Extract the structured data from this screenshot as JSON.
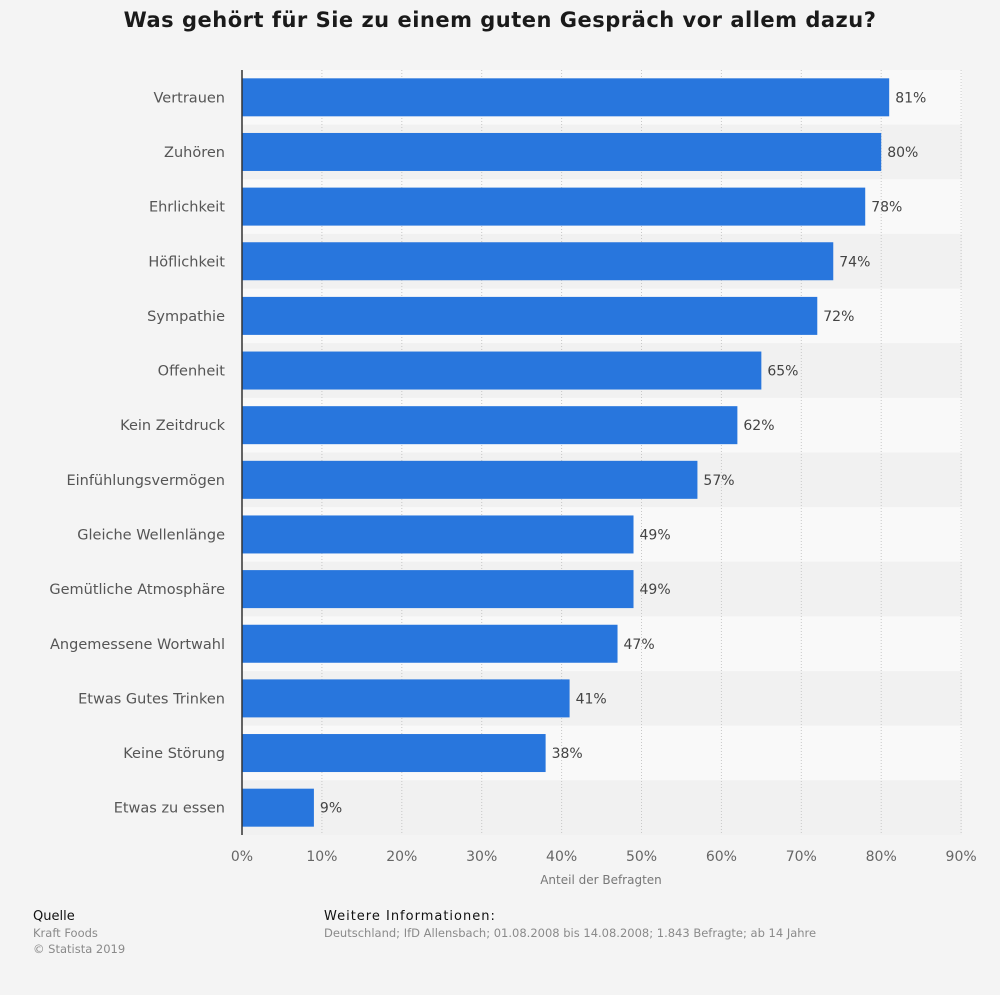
{
  "chart_data": {
    "type": "bar",
    "orientation": "horizontal",
    "title": "Was gehört für Sie zu einem guten Gespräch vor allem dazu?",
    "xlabel": "Anteil der Befragten",
    "categories": [
      "Vertrauen",
      "Zuhören",
      "Ehrlichkeit",
      "Höflichkeit",
      "Sympathie",
      "Offenheit",
      "Kein Zeitdruck",
      "Einfühlungsvermögen",
      "Gleiche Wellenlänge",
      "Gemütliche Atmosphäre",
      "Angemessene Wortwahl",
      "Etwas Gutes Trinken",
      "Keine Störung",
      "Etwas zu essen"
    ],
    "values": [
      81,
      80,
      78,
      74,
      72,
      65,
      62,
      57,
      49,
      49,
      47,
      41,
      38,
      9
    ],
    "value_labels": [
      "81%",
      "80%",
      "78%",
      "74%",
      "72%",
      "65%",
      "62%",
      "57%",
      "49%",
      "49%",
      "47%",
      "41%",
      "38%",
      "9%"
    ],
    "xlim": [
      0,
      90
    ],
    "ticks": [
      0,
      10,
      20,
      30,
      40,
      50,
      60,
      70,
      80,
      90
    ],
    "tick_labels": [
      "0%",
      "10%",
      "20%",
      "30%",
      "40%",
      "50%",
      "60%",
      "70%",
      "80%",
      "90%"
    ],
    "grid": "vertical dotted",
    "bar_color": "#2876dd"
  },
  "footer": {
    "source_heading": "Quelle",
    "source_name": "Kraft Foods",
    "copyright": "© Statista 2019",
    "info_heading": "Weitere Informationen:",
    "info_text": "Deutschland; IfD Allensbach; 01.08.2008 bis 14.08.2008; 1.843 Befragte; ab 14 Jahre"
  }
}
